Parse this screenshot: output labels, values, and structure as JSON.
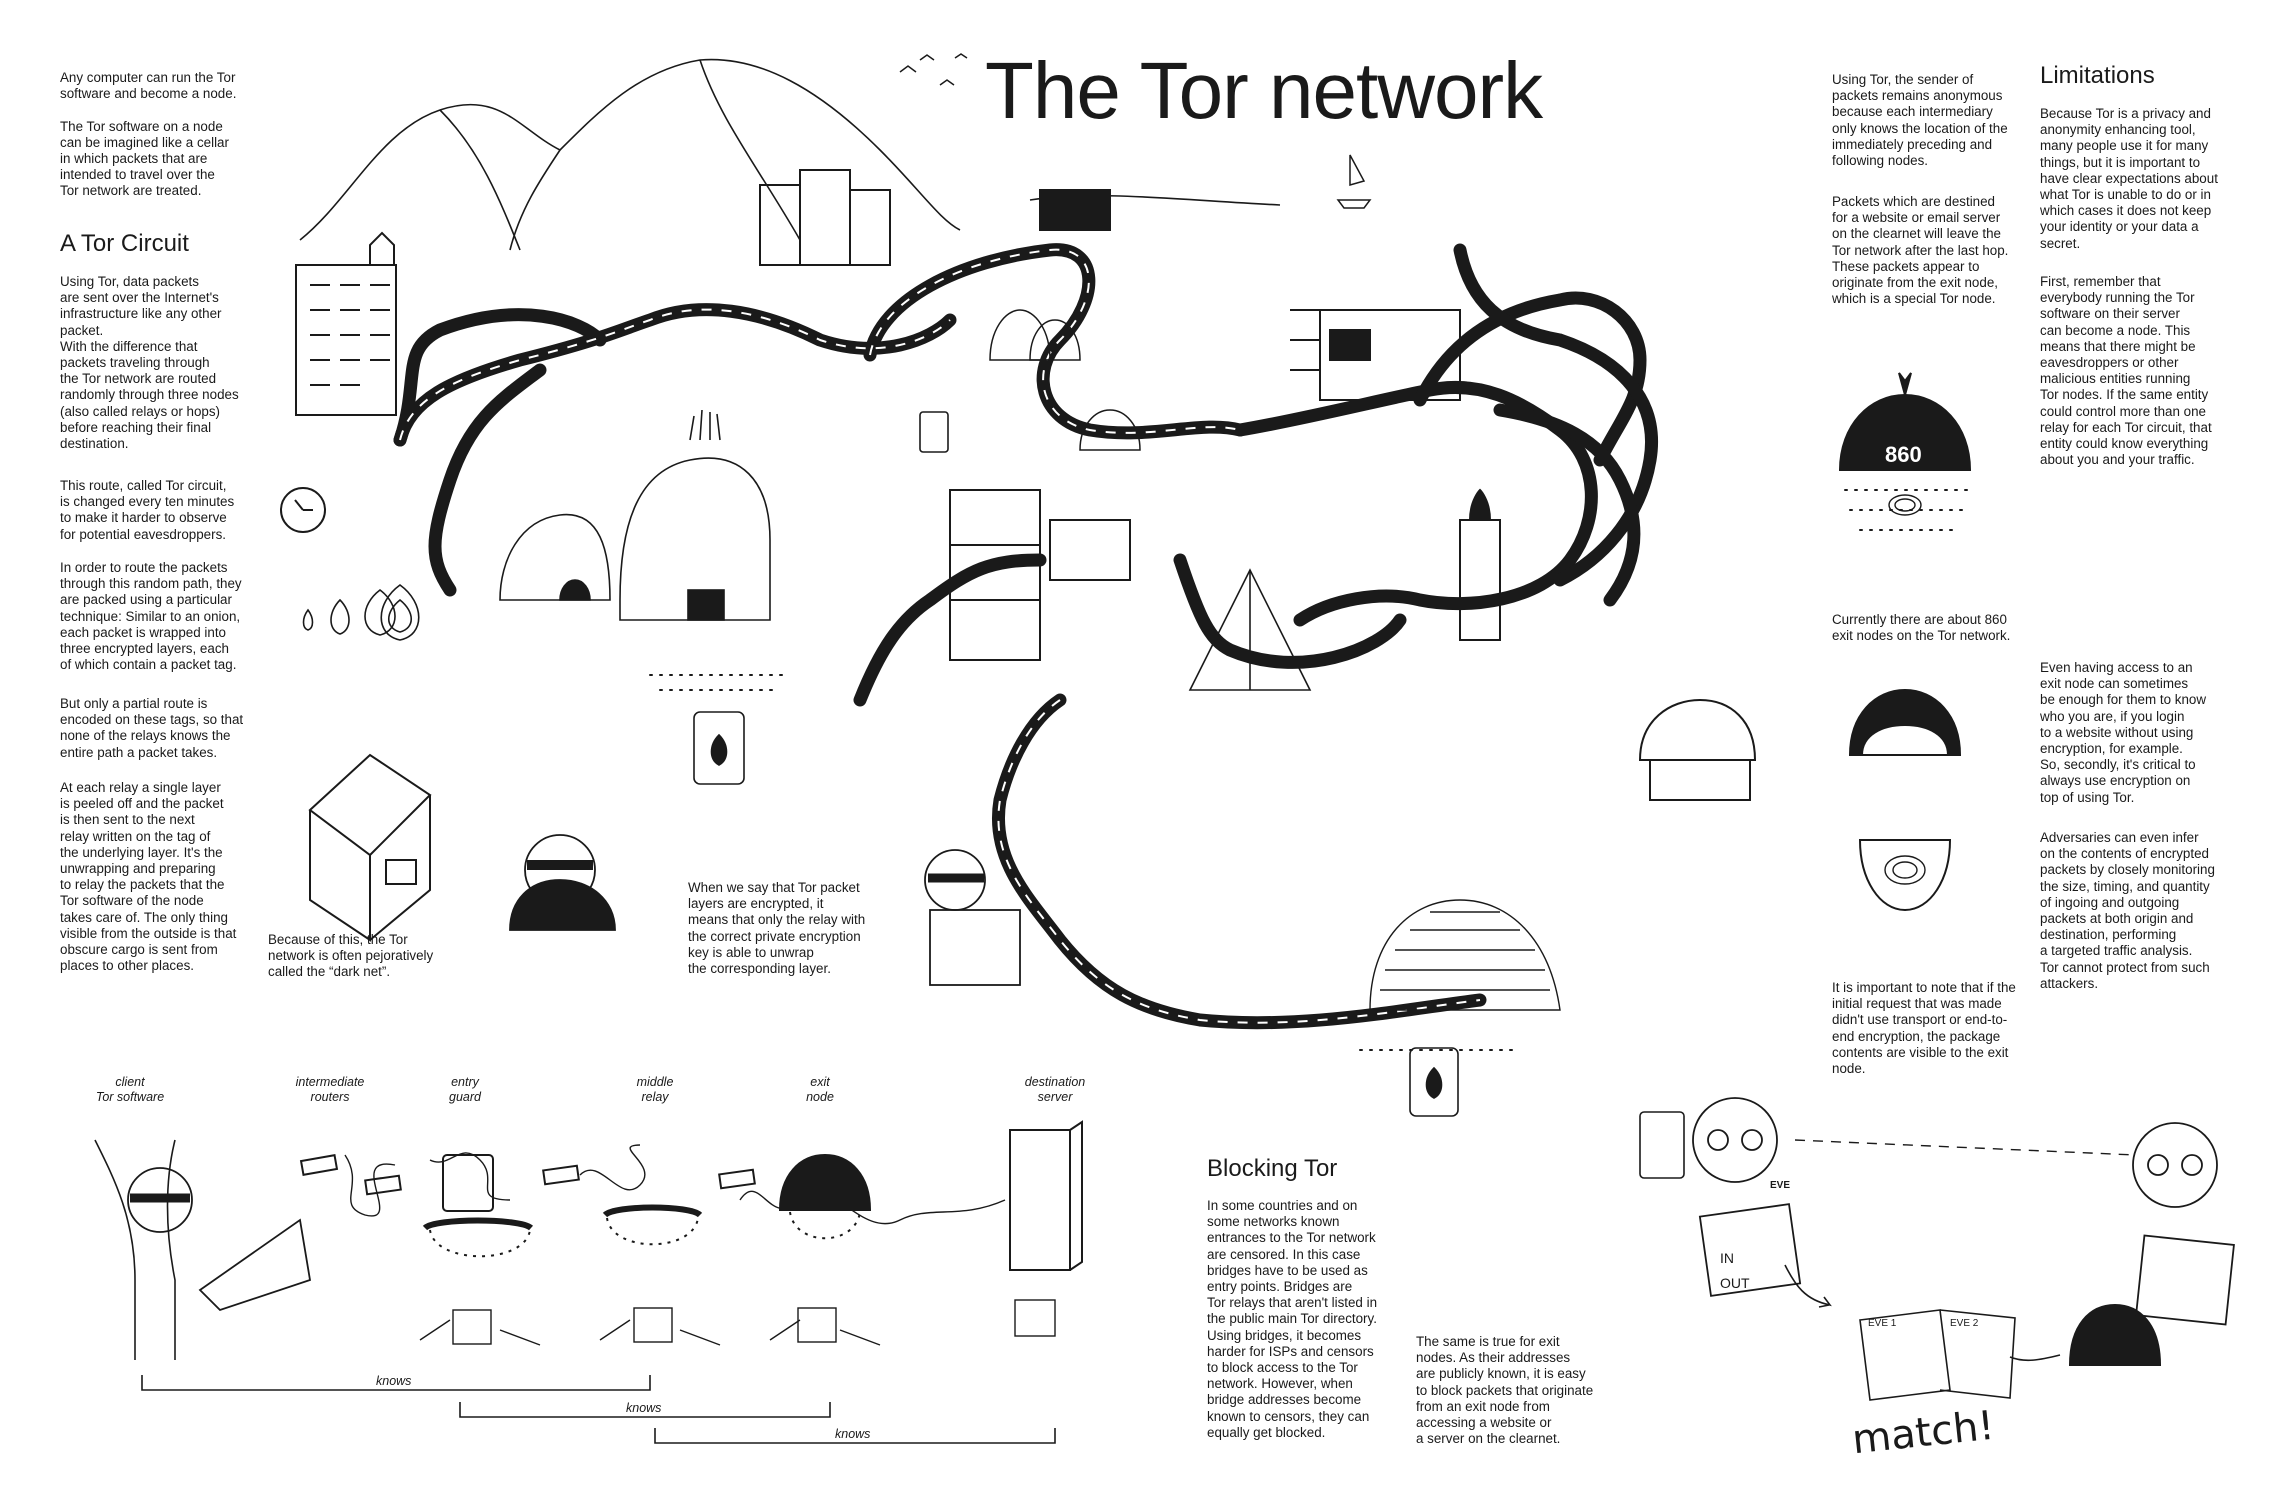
{
  "title": "The Tor network",
  "intro": "Any computer can run the Tor\nsoftware and become a node.\n\nThe Tor software on a node\ncan be imagined like a cellar\nin which packets that are\nintended to travel over the\nTor network are treated.",
  "circuit": {
    "heading": "A Tor Circuit",
    "p1": "Using Tor, data packets\nare sent over the Internet's\ninfrastructure like any other\npacket.\nWith the difference that\npackets traveling through\nthe Tor network are routed\nrandomly through three nodes\n(also called relays or hops)\nbefore reaching their final\ndestination.",
    "p2": "This route, called Tor circuit,\nis changed every ten minutes\nto make it harder to observe\nfor potential eavesdroppers.",
    "p3": "In order to route the packets\nthrough this random path, they\nare packed using a particular\ntechnique: Similar to an onion,\neach packet is wrapped into\nthree encrypted layers, each\nof which contain a packet tag.",
    "p4": "But only a partial route is\nencoded on these tags, so that\nnone of the relays knows the\nentire path a packet takes.",
    "p5": "At each relay a single layer\nis peeled off and the packet\nis then sent to the next\nrelay written on the tag of\nthe underlying layer. It's the\nunwrapping and preparing\nto relay the packets that the\nTor software of the node\ntakes care of. The only thing\nvisible from the outside is that\nobscure cargo is sent from\nplaces to other places."
  },
  "darknet": "Because of this, the Tor\nnetwork is often pejoratively\ncalled the “dark net”.",
  "encrypted": "When we say that Tor packet\nlayers are encrypted, it\nmeans that only the relay with\nthe correct private encryption\nkey is able to unwrap\nthe corresponding layer.",
  "right": {
    "p1": "Using Tor, the sender of\npackets remains anonymous\nbecause each intermediary\nonly knows the location of the\nimmediately preceding and\nfollowing nodes.",
    "p2": "Packets which are destined\nfor a website or email server\non the clearnet will leave the\nTor network after the last hop.\nThese packets appear to\noriginate from the exit node,\nwhich is a special Tor node.",
    "p3": "Currently there are about 860\nexit nodes on the Tor network.",
    "p4": "It is important to note that if the\ninitial request that was made\ndidn't use transport or end-to-\nend encryption, the package\ncontents are visible to the exit\nnode."
  },
  "limitations": {
    "heading": "Limitations",
    "p1": "Because Tor is a privacy and\nanonymity enhancing tool,\nmany people use it for many\nthings, but it is important to\nhave clear expectations about\nwhat Tor is unable to do or in\nwhich cases it does not keep\nyour identity or your data a\nsecret.",
    "p2": "First, remember that\neverybody running the Tor\nsoftware on their server\ncan become a node. This\nmeans that there might be\neavesdroppers or other\nmalicious entities running\nTor nodes. If the same entity\ncould control more than one\nrelay for each Tor circuit, that\nentity could know everything\nabout you and your traffic.",
    "p3": "Even having access to an\nexit node can sometimes\nbe enough for them to know\nwho you are, if you login\nto a website without using\nencryption, for example.\nSo, secondly, it's critical to\nalways use encryption on\ntop of using Tor.",
    "p4": "Adversaries can even infer\non the contents of encrypted\npackets by closely monitoring\nthe size, timing, and quantity\nof ingoing and outgoing\npackets at both origin and\ndestination, performing\na targeted traffic analysis.\nTor cannot protect from such\nattackers."
  },
  "blocking": {
    "heading": "Blocking Tor",
    "p1": "In some countries and on\nsome networks known\nentrances to the Tor network\nare censored. In this case\nbridges have to be used as\nentry points. Bridges are\nTor relays that aren't listed in\nthe public main Tor directory.\nUsing bridges, it becomes\nharder for ISPs and censors\nto block access to the Tor\nnetwork. However, when\nbridge addresses become\nknown to censors, they can\nequally get blocked.",
    "p2": "The same is true for exit\nnodes. As their addresses\nare publicly known, it is easy\nto block packets that originate\nfrom an exit node from\naccessing a website or\na server on the clearnet."
  },
  "diagram": {
    "labels": [
      "client\nTor software",
      "intermediate\nrouters",
      "entry\nguard",
      "middle\nrelay",
      "exit\nnode",
      "destination\nserver"
    ],
    "knows": [
      "knows",
      "knows",
      "knows"
    ]
  },
  "illustration_text": {
    "exit_count": "860",
    "eve_badge": "EVE",
    "in_label": "IN",
    "out_label": "OUT",
    "eve1": "EVE 1",
    "eve2": "EVE 2",
    "match": "match!"
  }
}
